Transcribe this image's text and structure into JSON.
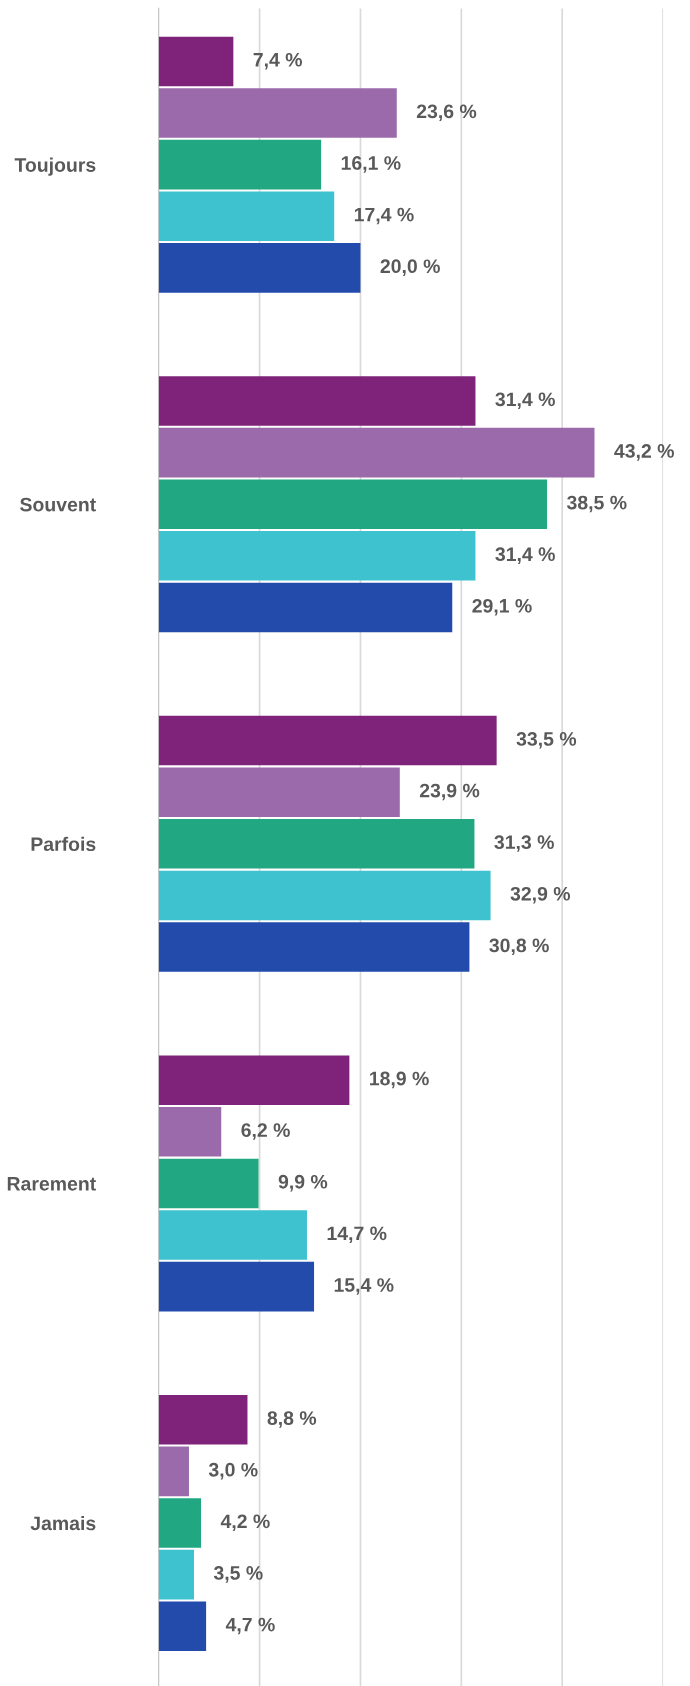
{
  "chart_data": {
    "type": "bar",
    "orientation": "horizontal",
    "categories": [
      "Toujours",
      "Souvent",
      "Parfois",
      "Rarement",
      "Jamais"
    ],
    "series": [
      {
        "color": "#7f237a",
        "values": [
          7.4,
          31.4,
          33.5,
          18.9,
          8.8
        ],
        "value_labels": [
          "7,4 %",
          "31,4 %",
          "33,5 %",
          "18,9 %",
          "8,8 %"
        ]
      },
      {
        "color": "#9b6aab",
        "values": [
          23.6,
          43.2,
          23.9,
          6.2,
          3.0
        ],
        "value_labels": [
          "23,6 %",
          "43,2 %",
          "23,9 %",
          "6,2 %",
          "3,0 %"
        ]
      },
      {
        "color": "#21a882",
        "values": [
          16.1,
          38.5,
          31.3,
          9.9,
          4.2
        ],
        "value_labels": [
          "16,1 %",
          "38,5 %",
          "31,3 %",
          "9,9 %",
          "4,2 %"
        ]
      },
      {
        "color": "#3ec2cf",
        "values": [
          17.4,
          31.4,
          32.9,
          14.7,
          3.5
        ],
        "value_labels": [
          "17,4 %",
          "31,4 %",
          "32,9 %",
          "14,7 %",
          "3,5 %"
        ]
      },
      {
        "color": "#224bab",
        "values": [
          20.0,
          29.1,
          30.8,
          15.4,
          4.7
        ],
        "value_labels": [
          "20,0 %",
          "29,1 %",
          "30,8 %",
          "15,4 %",
          "4,7 %"
        ]
      }
    ],
    "xlim": [
      0,
      50
    ],
    "xticks": [
      {
        "value": 10,
        "label": null
      },
      {
        "value": 20,
        "label": null
      },
      {
        "value": 30,
        "label": null
      },
      {
        "value": 40,
        "label": null
      },
      {
        "value": 50,
        "label": null
      }
    ],
    "tick_labels": "y",
    "grid": "x",
    "legend": false
  }
}
